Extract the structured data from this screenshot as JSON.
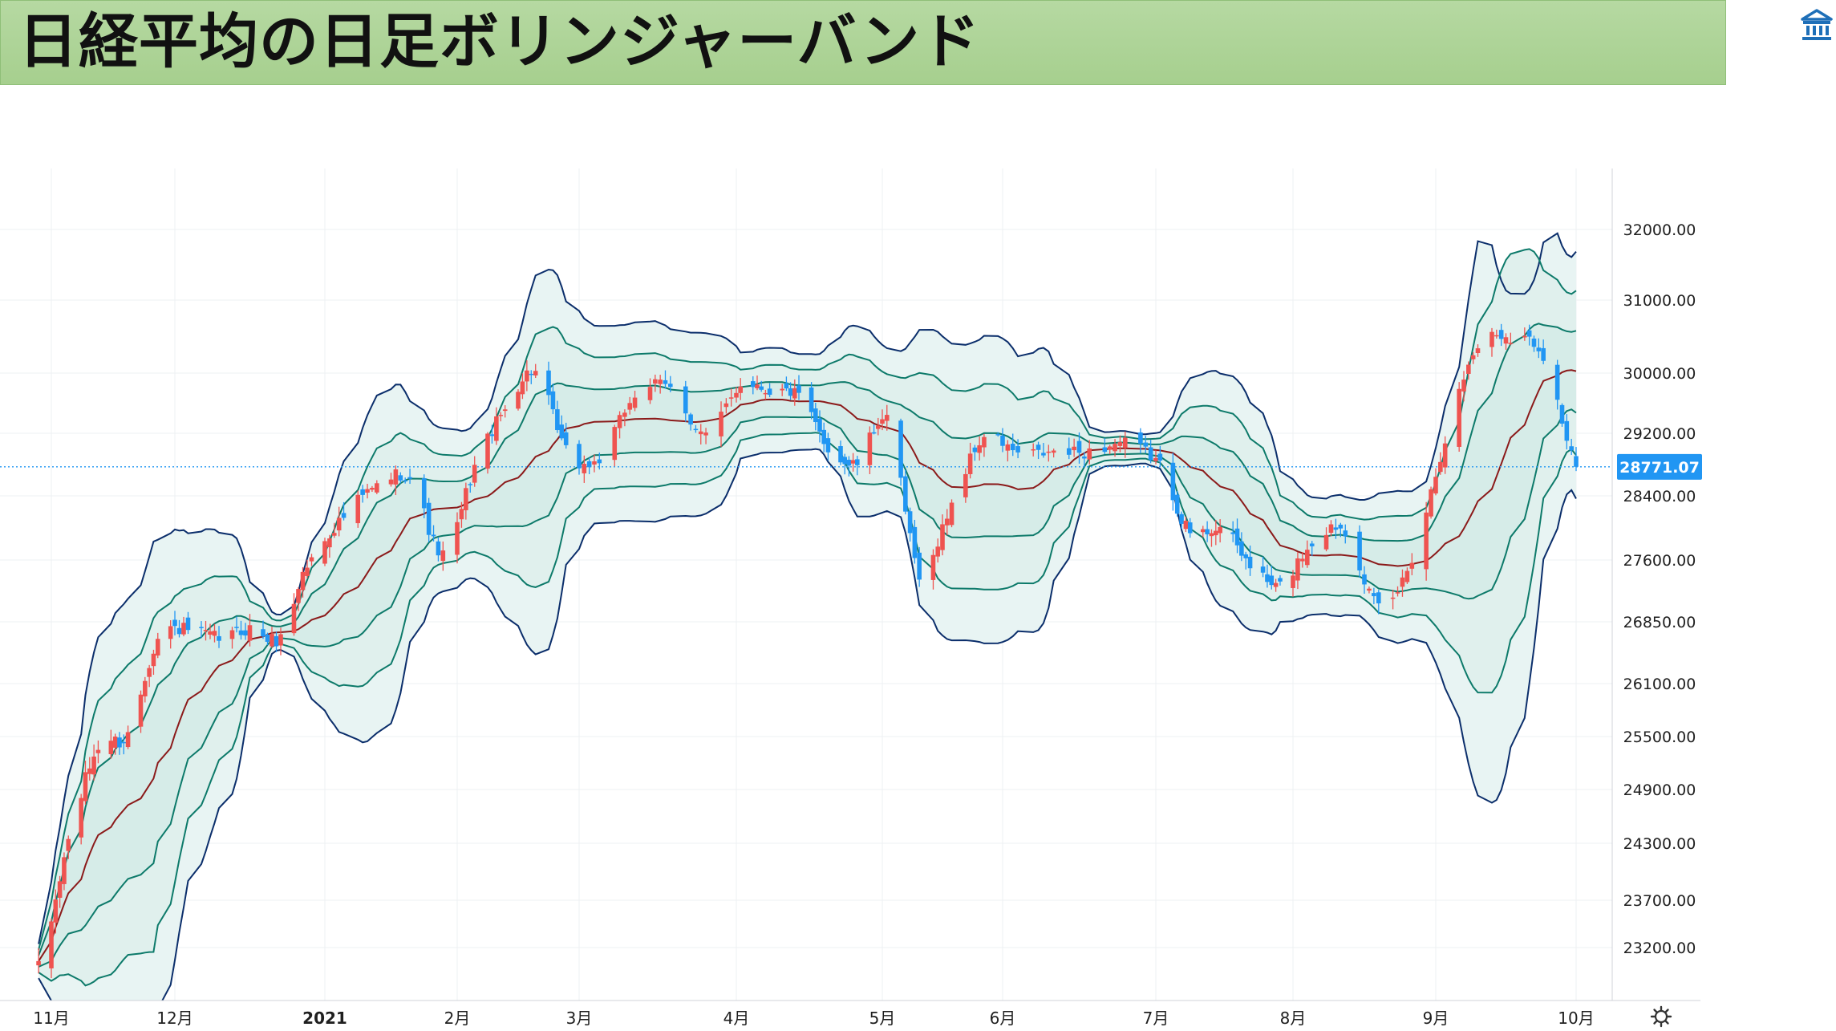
{
  "title": "日経平均の日足ボリンジャーバンド",
  "colors": {
    "up": "#ef5350",
    "down": "#2196f3",
    "sma": "#8b1a1a",
    "band": "#0d7a6a",
    "outer": "#0b2e6b",
    "fill_outer": "#e8f4f3",
    "fill_inner": "#d6ece8",
    "price_line": "#2196f3"
  },
  "icons": {
    "logo": "bank-building-icon",
    "settings": "gear-icon"
  },
  "chart_data": {
    "type": "candlestick",
    "title": "日経平均の日足ボリンジャーバンド",
    "y_ticks": [
      "32000.00",
      "31000.00",
      "30000.00",
      "29200.00",
      "28400.00",
      "27600.00",
      "26850.00",
      "26100.00",
      "25500.00",
      "24900.00",
      "24300.00",
      "23700.00",
      "23200.00"
    ],
    "x_ticks": [
      {
        "label": "11月",
        "date": "2020-11-02"
      },
      {
        "label": "12月",
        "date": "2020-12-01"
      },
      {
        "label": "2021",
        "date": "2021-01-04",
        "bold": true
      },
      {
        "label": "2月",
        "date": "2021-02-01"
      },
      {
        "label": "3月",
        "date": "2021-03-01"
      },
      {
        "label": "4月",
        "date": "2021-04-01"
      },
      {
        "label": "5月",
        "date": "2021-05-06"
      },
      {
        "label": "6月",
        "date": "2021-06-01"
      },
      {
        "label": "7月",
        "date": "2021-07-01"
      },
      {
        "label": "8月",
        "date": "2021-08-02"
      },
      {
        "label": "9月",
        "date": "2021-09-01"
      },
      {
        "label": "10月",
        "date": "2021-10-01"
      }
    ],
    "last_price": "28771.07",
    "grid": true,
    "indicator": "Bollinger Bands (±1σ, ±2σ, ±3σ)",
    "series": {
      "close": {
        "dates": [
          "2020-10-30",
          "2020-11-06",
          "2020-11-13",
          "2020-11-20",
          "2020-11-27",
          "2020-12-04",
          "2020-12-11",
          "2020-12-18",
          "2020-12-25",
          "2020-12-30",
          "2021-01-08",
          "2021-01-15",
          "2021-01-22",
          "2021-01-29",
          "2021-02-05",
          "2021-02-12",
          "2021-02-19",
          "2021-02-26",
          "2021-03-05",
          "2021-03-12",
          "2021-03-19",
          "2021-03-26",
          "2021-04-02",
          "2021-04-09",
          "2021-04-16",
          "2021-04-23",
          "2021-04-30",
          "2021-05-07",
          "2021-05-14",
          "2021-05-21",
          "2021-05-28",
          "2021-06-04",
          "2021-06-11",
          "2021-06-18",
          "2021-06-25",
          "2021-07-02",
          "2021-07-09",
          "2021-07-16",
          "2021-07-23",
          "2021-07-30",
          "2021-08-06",
          "2021-08-13",
          "2021-08-20",
          "2021-08-27",
          "2021-09-03",
          "2021-09-10",
          "2021-09-17",
          "2021-09-24",
          "2021-10-01"
        ],
        "values": [
          22977,
          24325,
          25385,
          25527,
          26644,
          26751,
          26652,
          26763,
          26656,
          27444,
          28139,
          28519,
          28631,
          27663,
          28779,
          29520,
          30017,
          28966,
          28864,
          29717,
          29792,
          29176,
          29854,
          29768,
          29683,
          29020,
          28813,
          29357,
          27448,
          28317,
          29149,
          28941,
          28948,
          28964,
          29066,
          28783,
          27940,
          28003,
          27548,
          27283,
          27820,
          27977,
          27013,
          27641,
          29128,
          30381,
          30500,
          30248,
          28771
        ]
      }
    }
  }
}
